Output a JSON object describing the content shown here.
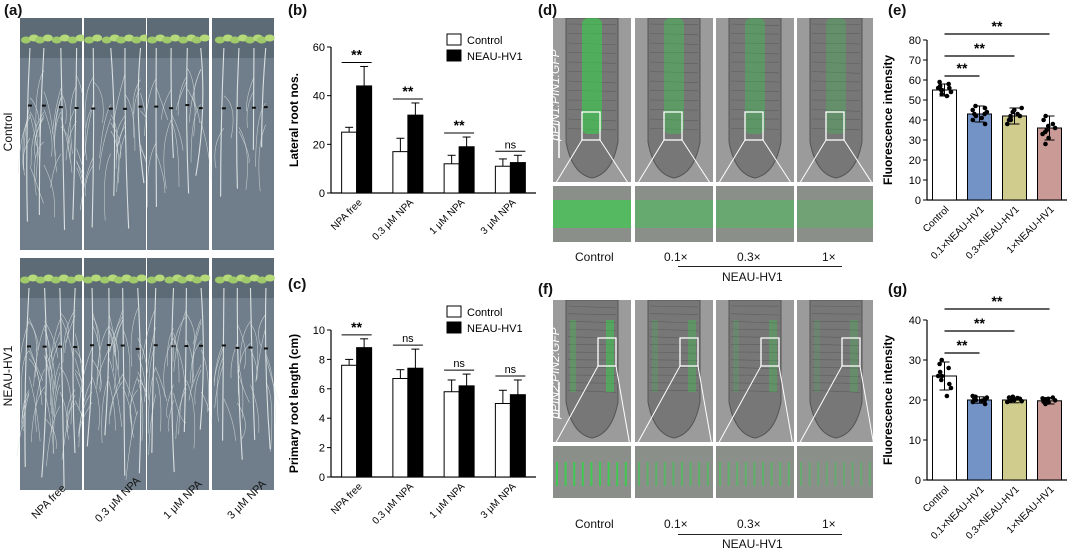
{
  "panels": {
    "a": {
      "label": "(a)",
      "row_labels": [
        "Control",
        "NEAU-HV1"
      ],
      "column_labels": [
        "NPA free",
        "0.3 μM NPA",
        "1 μM NPA",
        "3 μM NPA"
      ]
    },
    "d": {
      "label": "(d)",
      "stain": "pPIN1:PIN1:GFP",
      "bottom_labels": [
        "Control",
        "0.1×",
        "0.3×",
        "1×"
      ],
      "group_label": "NEAU-HV1"
    },
    "f": {
      "label": "(f)",
      "stain": "pPIN2:PIN2:GFP",
      "bottom_labels": [
        "Control",
        "0.1×",
        "0.3×",
        "1×"
      ],
      "group_label": "NEAU-HV1"
    }
  },
  "colors": {
    "control": "#ffffff",
    "neau": "#000000",
    "blue": "#7393c6",
    "yellow": "#cfcc8e",
    "pink": "#c99a96",
    "gfp": "#35d24a"
  },
  "chart_data": [
    {
      "id": "b",
      "panel_label": "(b)",
      "type": "bar",
      "ylabel": "Lateral root nos.",
      "ylim": [
        0,
        60
      ],
      "yticks": [
        0,
        20,
        40,
        60
      ],
      "categories": [
        "NPA free",
        "0.3 μM NPA",
        "1 μM NPA",
        "3 μM NPA"
      ],
      "series": [
        {
          "name": "Control",
          "values": [
            25,
            17,
            12,
            11
          ],
          "errors": [
            2,
            5.5,
            3.5,
            3
          ]
        },
        {
          "name": "NEAU-HV1",
          "values": [
            44,
            32,
            19,
            12.5
          ],
          "errors": [
            8,
            5,
            4,
            3
          ]
        }
      ],
      "significance": [
        "**",
        "**",
        "**",
        "ns"
      ],
      "legend": "top-right"
    },
    {
      "id": "c",
      "panel_label": "(c)",
      "type": "bar",
      "ylabel": "Primary root length (cm)",
      "ylim": [
        0,
        10
      ],
      "yticks": [
        0,
        2,
        4,
        6,
        8,
        10
      ],
      "categories": [
        "NPA free",
        "0.3 μM NPA",
        "1 μM NPA",
        "3 μM NPA"
      ],
      "series": [
        {
          "name": "Control",
          "values": [
            7.6,
            6.7,
            5.8,
            5.0
          ],
          "errors": [
            0.4,
            0.6,
            0.8,
            0.9
          ]
        },
        {
          "name": "NEAU-HV1",
          "values": [
            8.8,
            7.4,
            6.2,
            5.6
          ],
          "errors": [
            0.6,
            1.3,
            0.8,
            1.0
          ]
        }
      ],
      "significance": [
        "**",
        "ns",
        "ns",
        "ns"
      ],
      "legend": "top-right"
    },
    {
      "id": "e",
      "panel_label": "(e)",
      "type": "bar",
      "ylabel": "Fluorescence intensity",
      "ylim": [
        0,
        80
      ],
      "yticks": [
        0,
        10,
        20,
        30,
        40,
        50,
        60,
        70,
        80
      ],
      "categories": [
        "Control",
        "0.1×NEAU-HV1",
        "0.3×NEAU-HV1",
        "1×NEAU-HV1"
      ],
      "values": [
        55,
        43,
        42,
        36
      ],
      "errors": [
        3,
        4,
        4,
        6
      ],
      "points": [
        [
          52,
          54,
          55,
          56,
          57,
          58,
          59,
          53,
          56,
          55
        ],
        [
          38,
          40,
          42,
          43,
          44,
          45,
          46,
          41,
          43,
          47
        ],
        [
          38,
          40,
          41,
          42,
          43,
          44,
          45,
          46,
          42,
          40
        ],
        [
          28,
          31,
          34,
          35,
          37,
          38,
          40,
          42,
          36,
          33
        ]
      ],
      "significance": [
        "**",
        "**",
        "**"
      ]
    },
    {
      "id": "g",
      "panel_label": "(g)",
      "type": "bar",
      "ylabel": "Fluorescence intensity",
      "ylim": [
        0,
        40
      ],
      "yticks": [
        0,
        10,
        20,
        30,
        40
      ],
      "categories": [
        "Control",
        "0.1×NEAU-HV1",
        "0.3×NEAU-HV1",
        "1×NEAU-HV1"
      ],
      "values": [
        26,
        20,
        20,
        19.8
      ],
      "errors": [
        3.5,
        0.8,
        0.7,
        0.8
      ],
      "points": [
        [
          21,
          23,
          25,
          26,
          27,
          28,
          29,
          30,
          24,
          26
        ],
        [
          19,
          19.5,
          20,
          20.3,
          20.6,
          21,
          20,
          19.8,
          20.2,
          20.8
        ],
        [
          19.5,
          19.8,
          20,
          20.2,
          20.5,
          20.8,
          20,
          19.7,
          20.3,
          20.6
        ],
        [
          19,
          19.4,
          19.8,
          20,
          20.3,
          20.6,
          19.6,
          20.1,
          19.9,
          20.4
        ]
      ],
      "significance": [
        "**",
        "**",
        "**"
      ]
    }
  ]
}
